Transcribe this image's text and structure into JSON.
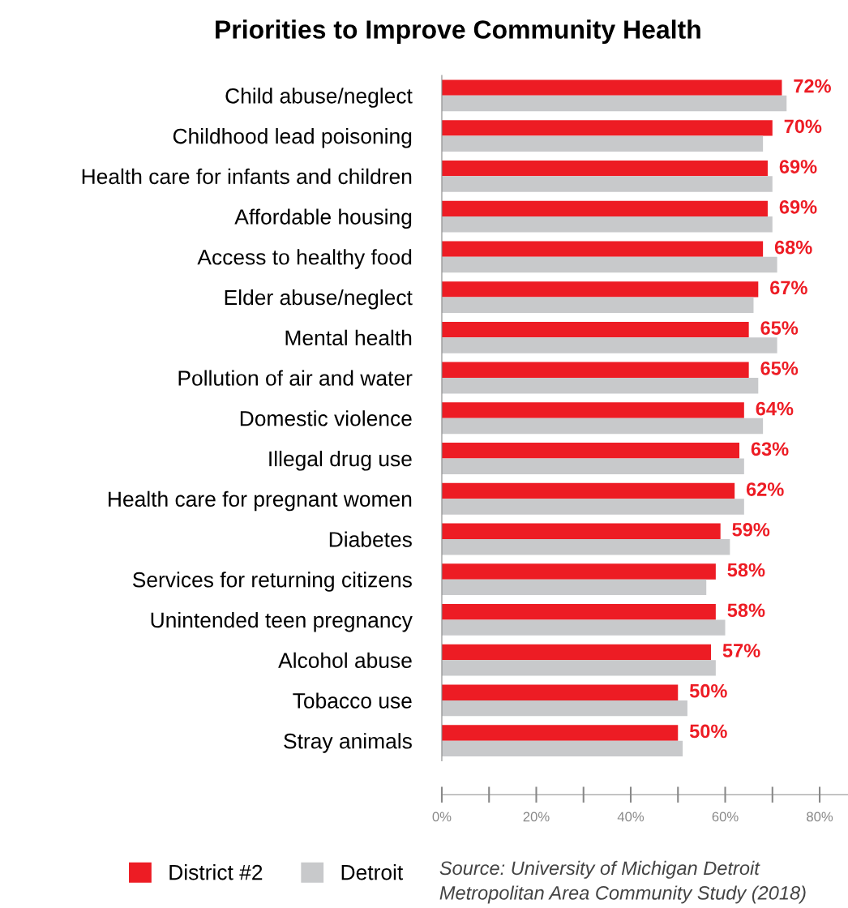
{
  "chart_data": {
    "type": "bar",
    "orientation": "horizontal",
    "title": "Priorities to Improve Community Health",
    "categories": [
      "Child abuse/neglect",
      "Childhood lead poisoning",
      "Health care for infants and children",
      "Affordable housing",
      "Access to healthy food",
      "Elder abuse/neglect",
      "Mental health",
      "Pollution of air and water",
      "Domestic violence",
      "Illegal drug use",
      "Health care for pregnant women",
      "Diabetes",
      "Services for returning citizens",
      "Unintended teen pregnancy",
      "Alcohol abuse",
      "Tobacco use",
      "Stray animals"
    ],
    "series": [
      {
        "name": "District #2",
        "color": "#ed1c24",
        "values": [
          72,
          70,
          69,
          69,
          68,
          67,
          65,
          65,
          64,
          63,
          62,
          59,
          58,
          58,
          57,
          50,
          50
        ],
        "value_labels": [
          "72%",
          "70%",
          "69%",
          "69%",
          "68%",
          "67%",
          "65%",
          "65%",
          "64%",
          "63%",
          "62%",
          "59%",
          "58%",
          "58%",
          "57%",
          "50%",
          "50%"
        ]
      },
      {
        "name": "Detroit",
        "color": "#c8c9cb",
        "values": [
          73,
          68,
          70,
          70,
          71,
          66,
          71,
          67,
          68,
          64,
          64,
          61,
          56,
          60,
          58,
          52,
          51
        ]
      }
    ],
    "xlim": [
      0,
      86
    ],
    "xticks": [
      {
        "value": 0,
        "label": "0%"
      },
      {
        "value": 20,
        "label": "20%"
      },
      {
        "value": 40,
        "label": "40%"
      },
      {
        "value": 60,
        "label": "60%"
      },
      {
        "value": 80,
        "label": "80%"
      }
    ],
    "grid": false,
    "legend": "bottom left",
    "annotations": [
      "Source: University of Michigan Detroit\nMetropolitan Area Community Study (2018)"
    ]
  }
}
